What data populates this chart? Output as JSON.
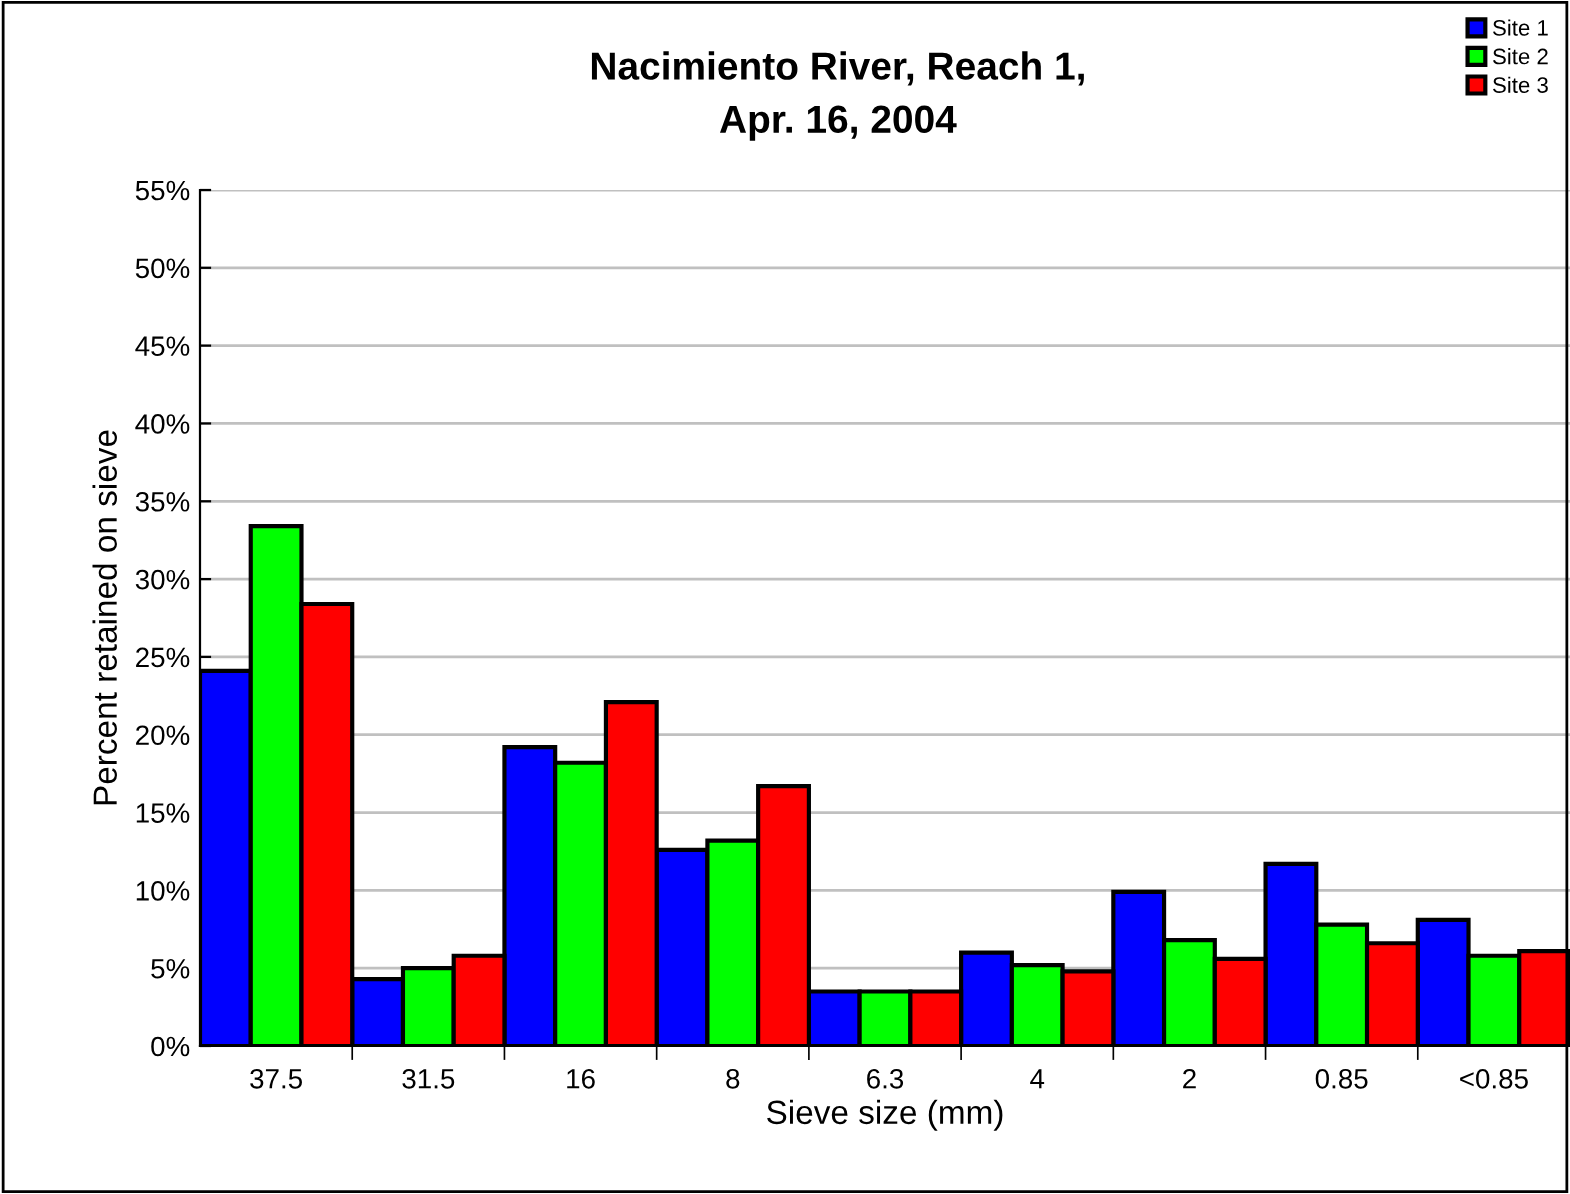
{
  "chart_data": {
    "type": "bar",
    "title": "Nacimiento River, Reach 1,\nApr. 16, 2004",
    "xlabel": "Sieve size (mm)",
    "ylabel": "Percent retained on sieve",
    "categories": [
      "37.5",
      "31.5",
      "16",
      "8",
      "6.3",
      "4",
      "2",
      "0.85",
      "<0.85"
    ],
    "series": [
      {
        "name": "Site 1",
        "color": "#0000ff",
        "values": [
          24.1,
          4.3,
          19.2,
          12.6,
          3.5,
          6.0,
          9.9,
          11.7,
          8.1
        ]
      },
      {
        "name": "Site 2",
        "color": "#00ff00",
        "values": [
          33.4,
          5.0,
          18.2,
          13.2,
          3.5,
          5.2,
          6.8,
          7.8,
          5.8
        ]
      },
      {
        "name": "Site 3",
        "color": "#ff0000",
        "values": [
          28.4,
          5.8,
          22.1,
          16.7,
          3.5,
          4.8,
          5.6,
          6.6,
          6.1
        ]
      }
    ],
    "ylim": [
      0,
      55
    ],
    "yticks": [
      {
        "value": 0,
        "label": "0%"
      },
      {
        "value": 5,
        "label": "5%"
      },
      {
        "value": 10,
        "label": "10%"
      },
      {
        "value": 15,
        "label": "15%"
      },
      {
        "value": 20,
        "label": "20%"
      },
      {
        "value": 25,
        "label": "25%"
      },
      {
        "value": 30,
        "label": "30%"
      },
      {
        "value": 35,
        "label": "35%"
      },
      {
        "value": 40,
        "label": "40%"
      },
      {
        "value": 45,
        "label": "45%"
      },
      {
        "value": 50,
        "label": "50%"
      },
      {
        "value": 55,
        "label": "55%"
      }
    ],
    "grid": "y",
    "legend": "top right"
  }
}
